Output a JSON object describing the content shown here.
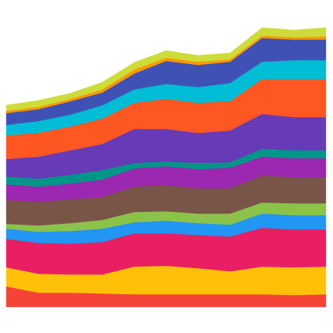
{
  "chart_data": {
    "type": "stacked_area",
    "categories": [
      null,
      null,
      null,
      null,
      null,
      null,
      null,
      null,
      null,
      null,
      null
    ],
    "ylim": [
      0,
      380
    ],
    "series": [
      {
        "color": "#f44336",
        "values": [
          26,
          18,
          18,
          17,
          16,
          16,
          16,
          16,
          16,
          15,
          16
        ]
      },
      {
        "color": "#ffc107",
        "values": [
          24,
          24,
          23,
          24,
          35,
          36,
          33,
          29,
          35,
          35,
          35
        ]
      },
      {
        "color": "#e91e63",
        "values": [
          36,
          39,
          39,
          41,
          42,
          41,
          42,
          44,
          49,
          48,
          47
        ]
      },
      {
        "color": "#2196f3",
        "values": [
          13,
          14,
          16,
          17,
          14,
          16,
          15,
          15,
          18,
          18,
          18
        ]
      },
      {
        "color": "#8bc34a",
        "values": [
          6,
          8,
          10,
          11,
          13,
          12,
          12,
          14,
          14,
          15,
          15
        ]
      },
      {
        "color": "#795548",
        "values": [
          30,
          30,
          30,
          29,
          32,
          33,
          32,
          32,
          34,
          33,
          33
        ]
      },
      {
        "color": "#9c27b0",
        "values": [
          20,
          19,
          20,
          22,
          23,
          24,
          24,
          26,
          24,
          24,
          24
        ]
      },
      {
        "color": "#009688",
        "values": [
          10,
          10,
          11,
          12,
          7,
          6,
          8,
          7,
          10,
          10,
          10
        ]
      },
      {
        "color": "#673ab7",
        "values": [
          22,
          28,
          31,
          33,
          43,
          41,
          38,
          40,
          44,
          42,
          42
        ]
      },
      {
        "color": "#ff5722",
        "values": [
          30,
          30,
          30,
          32,
          33,
          38,
          38,
          37,
          44,
          48,
          48
        ]
      },
      {
        "color": "#00bcd4",
        "values": [
          13,
          15,
          15,
          17,
          17,
          19,
          20,
          23,
          22,
          24,
          24
        ]
      },
      {
        "color": "#3f51b5",
        "values": [
          15,
          15,
          17,
          16,
          20,
          29,
          28,
          27,
          30,
          26,
          26
        ]
      },
      {
        "color": "#ff9800",
        "values": [
          3,
          3,
          3,
          4,
          5,
          4,
          4,
          3,
          3,
          3,
          4
        ]
      },
      {
        "color": "#cddc39",
        "values": [
          7,
          8,
          7,
          9,
          9,
          9,
          8,
          8,
          10,
          9,
          11
        ]
      }
    ]
  }
}
